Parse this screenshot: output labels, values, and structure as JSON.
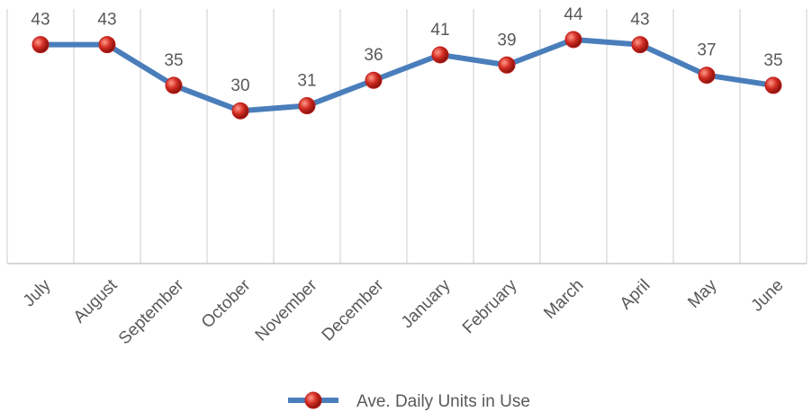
{
  "chart_data": {
    "type": "line",
    "categories": [
      "July",
      "August",
      "September",
      "October",
      "November",
      "December",
      "January",
      "February",
      "March",
      "April",
      "May",
      "June"
    ],
    "series": [
      {
        "name": "Ave. Daily Units in Use",
        "color": "#4a7ebb",
        "marker_color": "#c0201c",
        "values": [
          43,
          43,
          35,
          30,
          31,
          36,
          41,
          39,
          44,
          43,
          37,
          35
        ]
      }
    ],
    "ylim": [
      0,
      50
    ],
    "grid": true,
    "legend": "bottom"
  }
}
